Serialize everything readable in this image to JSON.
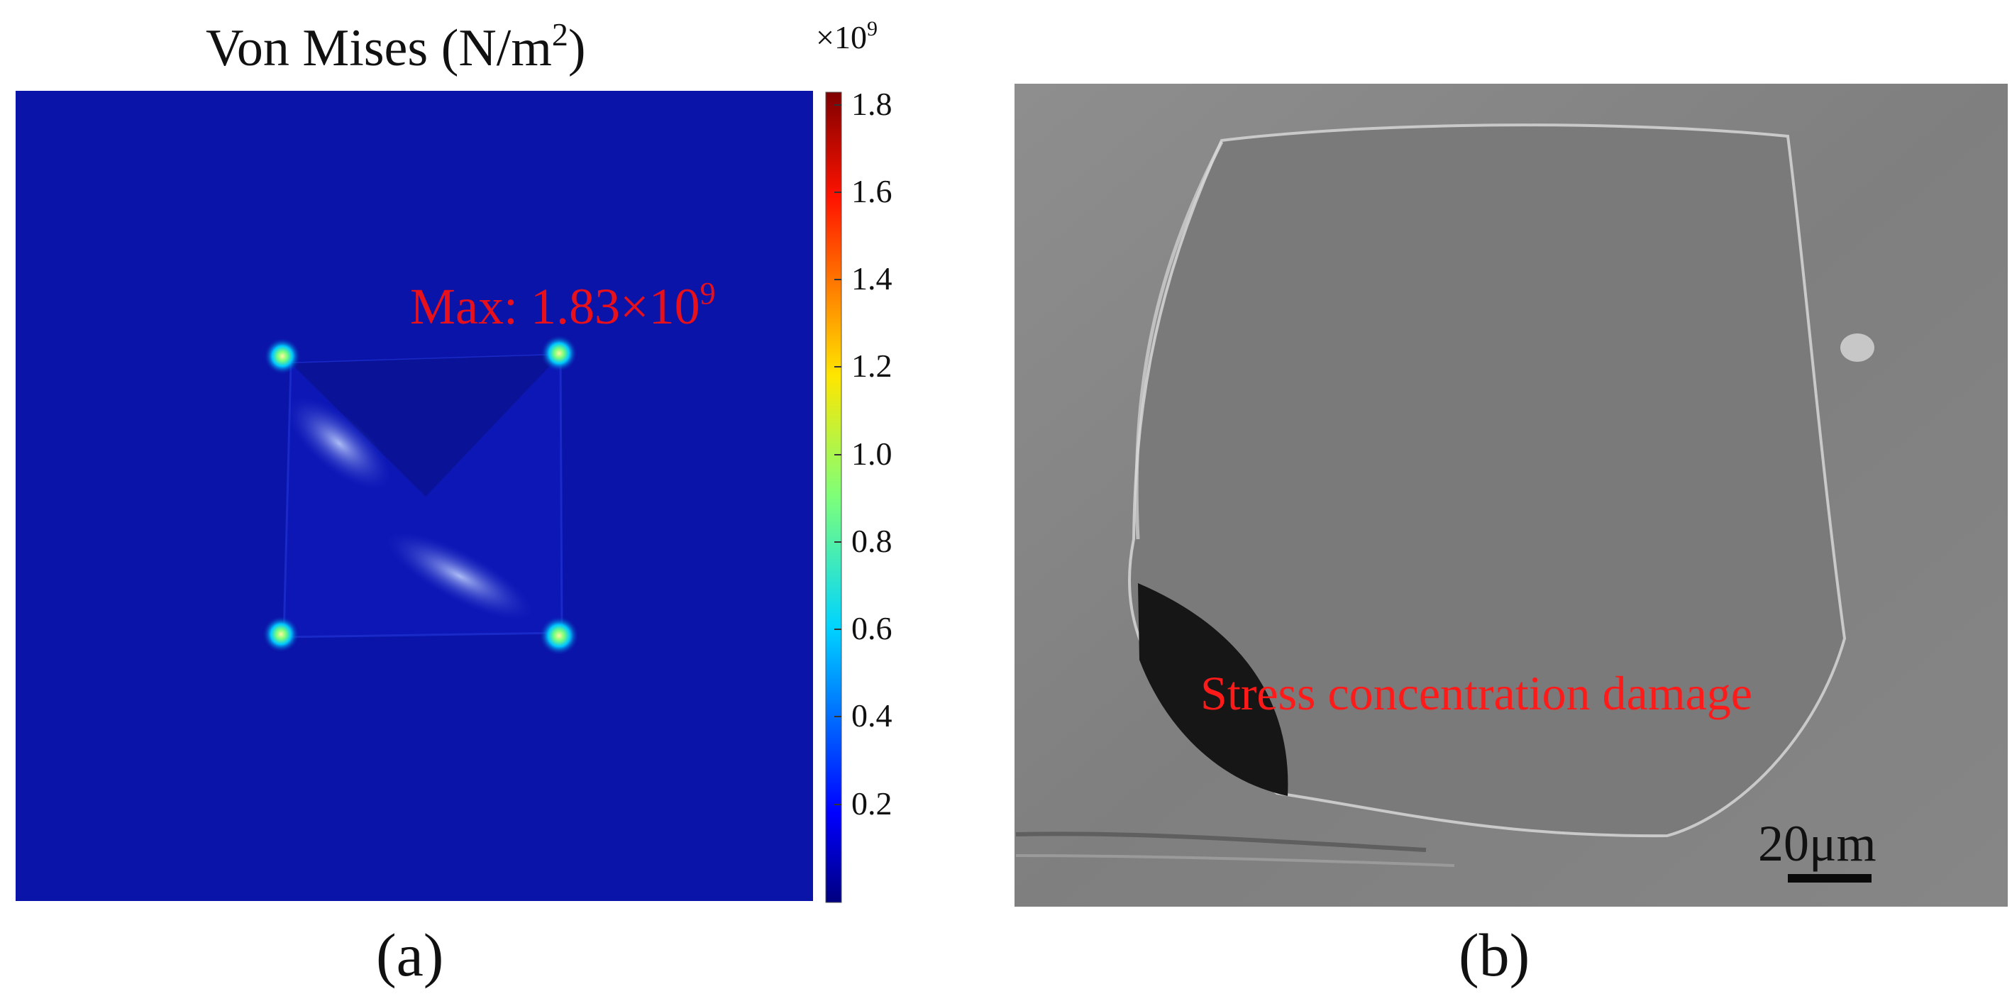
{
  "panel_a": {
    "title": "Von Mises (N/m",
    "title_sup": "2",
    "title_close": ")",
    "colorbar_multiplier": "×10",
    "colorbar_multiplier_exp": "9",
    "colorbar_ticks": [
      "1.8",
      "1.6",
      "1.4",
      "1.2",
      "1.0",
      "0.8",
      "0.6",
      "0.4",
      "0.2"
    ],
    "colorbar_range": [
      0,
      1.85
    ],
    "max_label": "Max: 1.83×10",
    "max_label_exp": "9",
    "background_color": "#0a14a8",
    "hotspot_count": 4,
    "label": "(a)"
  },
  "panel_b": {
    "annotation": "Stress concentration damage",
    "annotation_color": "#ff1a1a",
    "scale_bar_label": "20μm",
    "label": "(b)"
  }
}
